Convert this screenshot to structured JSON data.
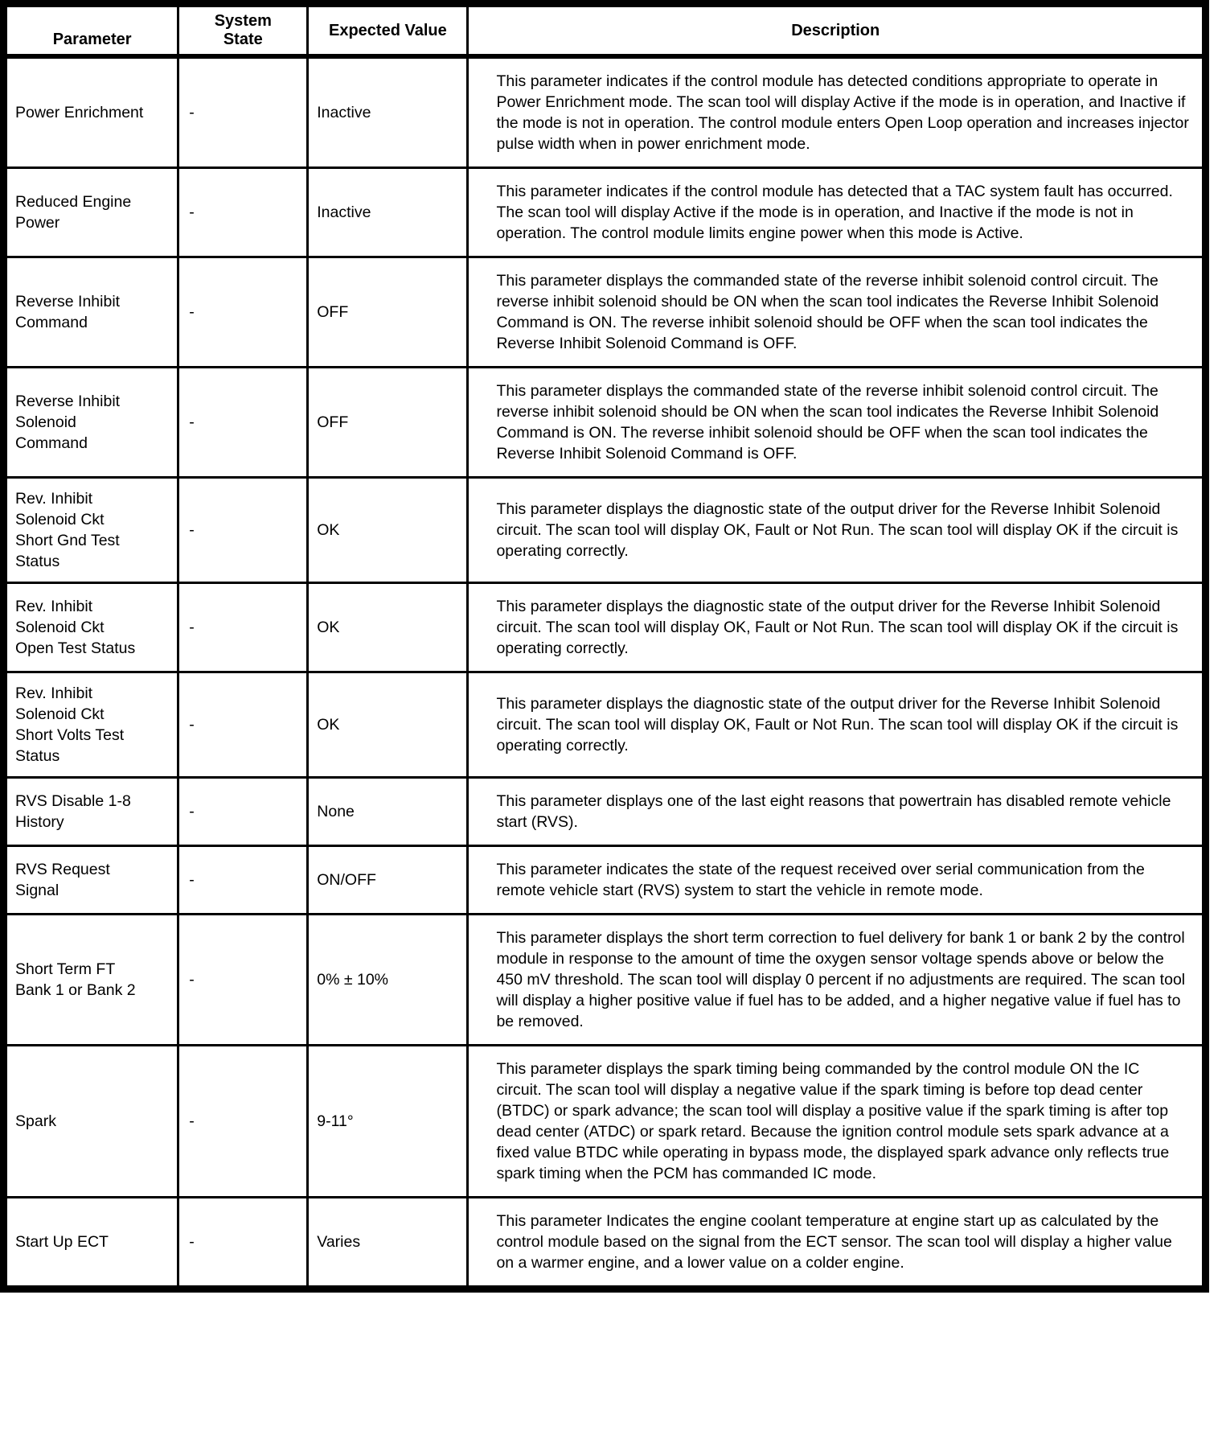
{
  "colors": {
    "text": "#000000",
    "border": "#000000",
    "background": "#ffffff"
  },
  "table": {
    "headers": {
      "parameter": "Parameter",
      "system_state": "System\nState",
      "expected_value": "Expected Value",
      "description": "Description"
    },
    "rows": [
      {
        "parameter": "Power Enrichment",
        "system_state": "-",
        "expected_value": "Inactive",
        "description": "This parameter indicates if the control module has detected conditions appropriate to operate in Power Enrichment mode. The scan tool will display Active if the mode is in operation, and Inactive if the mode is not in operation. The control module enters Open Loop operation and increases injector pulse width when in power enrichment mode."
      },
      {
        "parameter": "Reduced Engine\nPower",
        "system_state": "-",
        "expected_value": "Inactive",
        "description": "This parameter indicates if the control module has detected that a TAC system fault has occurred. The scan tool will display Active if the mode is in operation, and Inactive if the mode is not in operation. The control module limits engine power when this mode is Active."
      },
      {
        "parameter": "Reverse Inhibit\nCommand",
        "system_state": "-",
        "expected_value": "OFF",
        "description": "This parameter displays the commanded state of the reverse inhibit solenoid control circuit. The reverse inhibit solenoid should be ON when the scan tool indicates the Reverse Inhibit Solenoid Command is ON. The reverse inhibit solenoid should be OFF when the scan tool indicates the Reverse Inhibit Solenoid Command is OFF."
      },
      {
        "parameter": "Reverse Inhibit\nSolenoid\nCommand",
        "system_state": "-",
        "expected_value": "OFF",
        "description": "This parameter displays the commanded state of the reverse inhibit solenoid control circuit. The reverse inhibit solenoid should be ON when the scan tool indicates the Reverse Inhibit Solenoid Command is ON. The reverse inhibit solenoid should be OFF when the scan tool indicates the Reverse Inhibit Solenoid Command is OFF."
      },
      {
        "parameter": "Rev. Inhibit\nSolenoid Ckt\nShort Gnd Test\nStatus",
        "system_state": "-",
        "expected_value": "OK",
        "description": "This parameter displays the diagnostic state of the output driver for the Reverse Inhibit Solenoid circuit. The scan tool will display OK, Fault or Not Run. The scan tool will display OK if the circuit is operating correctly."
      },
      {
        "parameter": "Rev. Inhibit\nSolenoid Ckt\nOpen Test Status",
        "system_state": "-",
        "expected_value": "OK",
        "description": "This parameter displays the diagnostic state of the output driver for the Reverse Inhibit Solenoid circuit. The scan tool will display OK, Fault or Not Run. The scan tool will display OK if the circuit is operating correctly."
      },
      {
        "parameter": "Rev. Inhibit\nSolenoid Ckt\nShort Volts Test\nStatus",
        "system_state": "-",
        "expected_value": "OK",
        "description": "This parameter displays the diagnostic state of the output driver for the Reverse Inhibit Solenoid circuit. The scan tool will display OK, Fault or Not Run. The scan tool will display OK if the circuit is operating correctly."
      },
      {
        "parameter": "RVS Disable 1-8\nHistory",
        "system_state": "-",
        "expected_value": "None",
        "description": "This parameter displays one of the last eight reasons that powertrain has disabled remote vehicle start (RVS)."
      },
      {
        "parameter": "RVS Request\nSignal",
        "system_state": "-",
        "expected_value": "ON/OFF",
        "description": "This parameter indicates the state of the request received over serial communication from the remote vehicle start (RVS) system to start the vehicle in remote mode."
      },
      {
        "parameter": "Short Term FT\nBank 1 or Bank 2",
        "system_state": "-",
        "expected_value": "0% ± 10%",
        "description": "This parameter displays the short term correction to fuel delivery for bank 1 or bank 2 by the control module in response to the amount of time the oxygen sensor voltage spends above or below the 450 mV threshold. The scan tool will display 0 percent if no adjustments are required. The scan tool will display a higher positive value if fuel has to be added, and a higher negative value if fuel has to be removed."
      },
      {
        "parameter": "Spark",
        "system_state": "-",
        "expected_value": "9-11°",
        "description": "This parameter displays the spark timing being commanded by the control module ON the IC circuit. The scan tool will display a negative value if the spark timing is before top dead center (BTDC) or spark advance; the scan tool will display a positive value if the spark timing is after top dead center (ATDC) or spark retard. Because the ignition control module sets spark advance at a fixed value BTDC while operating in bypass mode, the displayed spark advance only reflects true spark timing when the PCM has commanded IC mode."
      },
      {
        "parameter": "Start Up ECT",
        "system_state": "-",
        "expected_value": "Varies",
        "description": "This parameter Indicates the engine coolant temperature at engine start up as calculated by the control module based on the signal from the ECT sensor. The scan tool will display a higher value on a warmer engine, and a lower value on a colder engine."
      }
    ]
  }
}
